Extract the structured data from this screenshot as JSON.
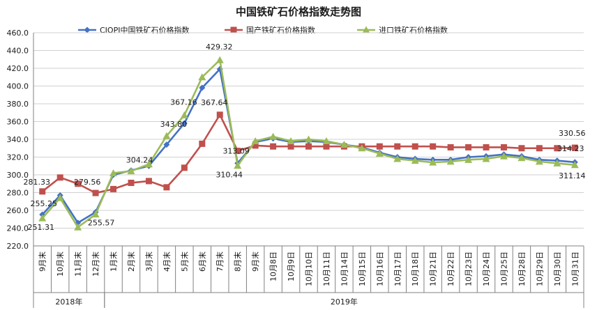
{
  "chart_data": {
    "type": "line",
    "title": "中国铁矿石价格指数走势图",
    "ylim": [
      220,
      460
    ],
    "ystep": 20,
    "ytick_labels": [
      "220.0",
      "240.0",
      "260.0",
      "280.0",
      "300.0",
      "320.0",
      "340.0",
      "360.0",
      "380.0",
      "400.0",
      "420.0",
      "440.0",
      "460.0"
    ],
    "grid": "horizontal",
    "legend_position": "top",
    "categories": [
      "9月末",
      "10月末",
      "11月末",
      "12月末",
      "1月末",
      "2月末",
      "3月末",
      "4月末",
      "5月末",
      "6月末",
      "7月末",
      "8月末",
      "9月末",
      "10月8日",
      "10月9日",
      "10月10日",
      "10月11日",
      "10月14日",
      "10月15日",
      "10月16日",
      "10月17日",
      "10月18日",
      "10月21日",
      "10月22日",
      "10月23日",
      "10月24日",
      "10月25日",
      "10月28日",
      "10月29日",
      "10月30日",
      "10月31日"
    ],
    "groups": [
      {
        "label": "2018年",
        "from": 0,
        "to": 3
      },
      {
        "label": "2019年",
        "from": 4,
        "to": 30
      }
    ],
    "series": [
      {
        "name": "CIOPI中国铁矿石价格指数",
        "color": "#4472C4",
        "marker": "diamond",
        "values": [
          255.25,
          277.0,
          246.0,
          258.0,
          300.0,
          305.0,
          310.0,
          334.0,
          358.0,
          398.0,
          419.0,
          313.09,
          337.0,
          341.0,
          337.0,
          338.0,
          337.0,
          334.0,
          331.0,
          325.0,
          320.0,
          318.0,
          317.0,
          317.0,
          320.0,
          321.0,
          323.0,
          321.0,
          317.0,
          316.0,
          314.23
        ]
      },
      {
        "name": "国产铁矿石价格指数",
        "color": "#C0504D",
        "marker": "square",
        "values": [
          281.33,
          297.0,
          290.0,
          279.56,
          284.0,
          291.0,
          293.0,
          286.0,
          308.0,
          335.0,
          367.64,
          327.0,
          333.0,
          332.0,
          332.0,
          332.0,
          332.0,
          332.0,
          332.0,
          332.0,
          332.0,
          332.0,
          332.0,
          331.0,
          331.0,
          331.0,
          331.0,
          330.0,
          330.0,
          330.0,
          330.56
        ]
      },
      {
        "name": "进口铁矿石价格指数",
        "color": "#9BBB59",
        "marker": "triangle",
        "values": [
          251.31,
          274.0,
          241.0,
          255.57,
          302.0,
          304.24,
          312.0,
          343.8,
          367.16,
          410.0,
          429.32,
          310.44,
          338.0,
          343.0,
          338.0,
          340.0,
          338.0,
          334.0,
          330.0,
          324.0,
          318.0,
          316.0,
          314.0,
          315.0,
          317.0,
          318.0,
          321.0,
          319.0,
          315.0,
          313.0,
          311.14
        ]
      }
    ],
    "annotations": [
      {
        "series": 0,
        "index": 0,
        "text": "255.25"
      },
      {
        "series": 0,
        "index": 11,
        "text": "313.09"
      },
      {
        "series": 0,
        "index": 30,
        "text": "314.23"
      },
      {
        "series": 1,
        "index": 0,
        "text": "281.33"
      },
      {
        "series": 1,
        "index": 3,
        "text": "279.56"
      },
      {
        "series": 1,
        "index": 10,
        "text": "367.64"
      },
      {
        "series": 1,
        "index": 30,
        "text": "330.56"
      },
      {
        "series": 2,
        "index": 0,
        "text": "251.31"
      },
      {
        "series": 2,
        "index": 3,
        "text": "255.57"
      },
      {
        "series": 2,
        "index": 5,
        "text": "304.24"
      },
      {
        "series": 2,
        "index": 7,
        "text": "343.80"
      },
      {
        "series": 2,
        "index": 8,
        "text": "367.16"
      },
      {
        "series": 2,
        "index": 10,
        "text": "429.32"
      },
      {
        "series": 2,
        "index": 11,
        "text": "310.44"
      },
      {
        "series": 2,
        "index": 30,
        "text": "311.14"
      }
    ]
  }
}
